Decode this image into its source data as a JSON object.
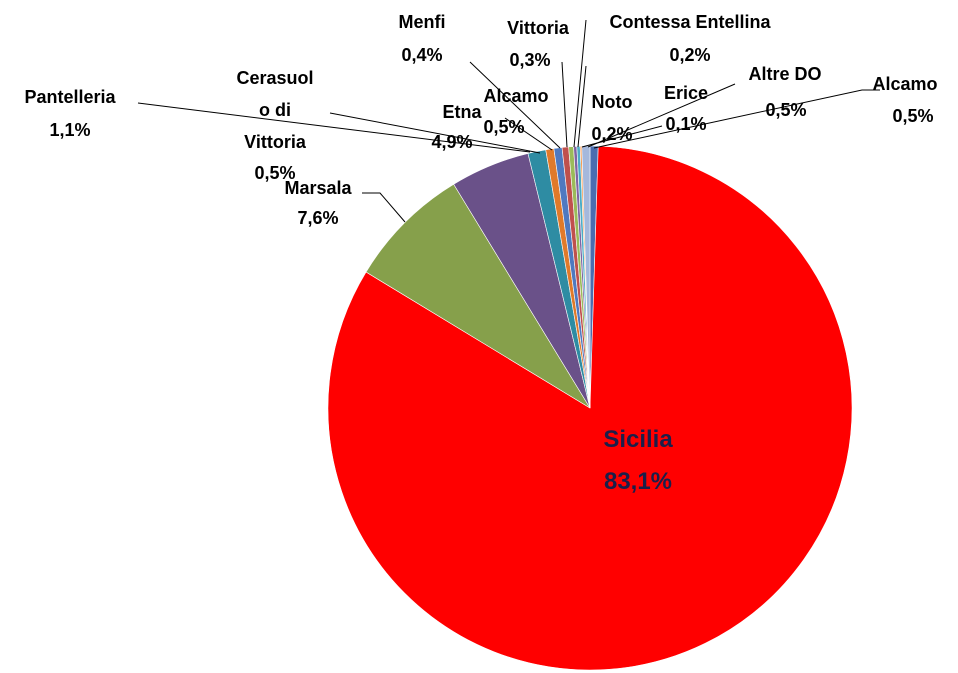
{
  "chart_data": {
    "type": "pie",
    "categories": [
      "Alcamo",
      "Sicilia",
      "Marsala",
      "Etna",
      "Pantelleria",
      "Cerasuolo di Vittoria",
      "Alcamo",
      "Menfi",
      "Vittoria",
      "Contessa Entellina",
      "Noto",
      "Erice",
      "Altre DO"
    ],
    "values": [
      0.5,
      83.1,
      7.6,
      4.9,
      1.1,
      0.5,
      0.5,
      0.4,
      0.3,
      0.2,
      0.2,
      0.1,
      0.5
    ],
    "value_labels": [
      "0,5%",
      "83,1%",
      "7,6%",
      "4,9%",
      "1,1%",
      "0,5%",
      "0,5%",
      "0,4%",
      "0,3%",
      "0,2%",
      "0,2%",
      "0,1%",
      "0,5%"
    ],
    "colors": [
      "#4a6db0",
      "#ff0000",
      "#86a04b",
      "#6a5189",
      "#2e8ca3",
      "#e07a2a",
      "#4f79c0",
      "#c0504d",
      "#9bbb59",
      "#8064a2",
      "#4bacc6",
      "#f79646",
      "#a5b8dc"
    ]
  }
}
